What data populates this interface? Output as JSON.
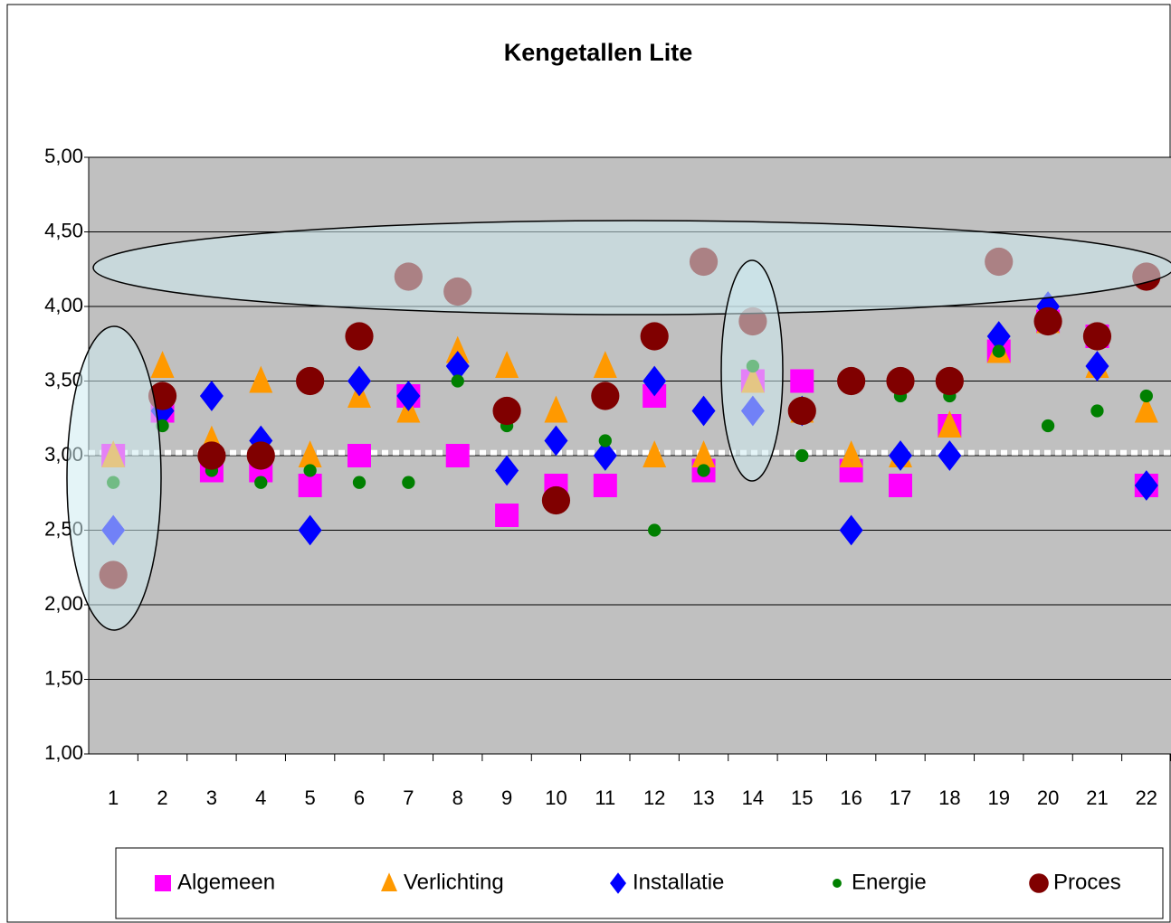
{
  "chart_data": {
    "type": "scatter",
    "title": "Kengetallen Lite",
    "categories": [
      "1",
      "2",
      "3",
      "4",
      "5",
      "6",
      "7",
      "8",
      "9",
      "10",
      "11",
      "12",
      "13",
      "14",
      "15",
      "16",
      "17",
      "18",
      "19",
      "20",
      "21",
      "22"
    ],
    "series": [
      {
        "name": "Algemeen",
        "color": "#ff00ff",
        "marker": "square",
        "values": [
          3.0,
          3.3,
          2.9,
          2.9,
          2.8,
          3.0,
          3.4,
          3.0,
          2.6,
          2.8,
          2.8,
          3.4,
          2.9,
          3.5,
          3.5,
          2.9,
          2.8,
          3.2,
          3.7,
          3.9,
          3.8,
          2.8
        ]
      },
      {
        "name": "Verlichting",
        "color": "#ff9900",
        "marker": "triangle",
        "values": [
          3.0,
          3.6,
          3.1,
          3.5,
          3.0,
          3.4,
          3.3,
          3.7,
          3.6,
          3.3,
          3.6,
          3.0,
          3.0,
          3.5,
          3.3,
          3.0,
          3.0,
          3.2,
          3.7,
          3.9,
          3.6,
          3.3
        ]
      },
      {
        "name": "Installatie",
        "color": "#0000ff",
        "marker": "diamond",
        "values": [
          2.5,
          3.3,
          3.4,
          3.1,
          2.5,
          3.5,
          3.4,
          3.6,
          2.9,
          3.1,
          3.0,
          3.5,
          3.3,
          3.3,
          3.3,
          2.5,
          3.0,
          3.0,
          3.8,
          4.0,
          3.6,
          2.8
        ]
      },
      {
        "name": "Energie",
        "color": "#008000",
        "marker": "dot",
        "values": [
          2.82,
          3.2,
          2.9,
          2.82,
          2.9,
          2.82,
          2.82,
          3.5,
          3.2,
          2.7,
          3.1,
          2.5,
          2.9,
          3.6,
          3.0,
          3.5,
          3.4,
          3.4,
          3.7,
          3.2,
          3.3,
          3.4
        ]
      },
      {
        "name": "Proces",
        "color": "#800000",
        "marker": "circle",
        "values": [
          2.2,
          3.4,
          3.0,
          3.0,
          3.5,
          3.8,
          4.2,
          4.1,
          3.3,
          2.7,
          3.4,
          3.8,
          4.3,
          3.9,
          3.3,
          3.5,
          3.5,
          3.5,
          4.3,
          3.9,
          3.8,
          4.2
        ]
      }
    ],
    "reference_line": 3.02,
    "ylim": [
      1,
      5
    ],
    "yticks": [
      {
        "value": 1,
        "label": "1,00"
      },
      {
        "value": 1.5,
        "label": "1,50"
      },
      {
        "value": 2,
        "label": "2,00"
      },
      {
        "value": 2.5,
        "label": "2,50"
      },
      {
        "value": 3,
        "label": "3,00"
      },
      {
        "value": 3.5,
        "label": "3,50"
      },
      {
        "value": 4,
        "label": "4,00"
      },
      {
        "value": 4.5,
        "label": "4,50"
      },
      {
        "value": 5,
        "label": "5,00"
      }
    ],
    "grid": true,
    "legend": "bottom"
  }
}
